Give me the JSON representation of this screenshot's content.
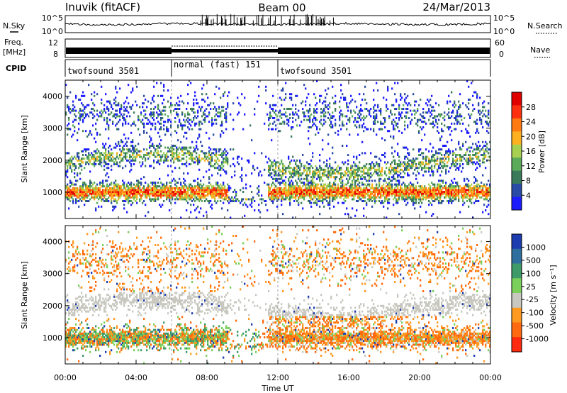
{
  "header": {
    "station": "Inuvik (fitACF)",
    "beam": "Beam 00",
    "date": "24/Mar/2013"
  },
  "noise_panel": {
    "left_label": "N.Sky",
    "right_label": "N.Search",
    "left_ticks": [
      "10^5",
      "10^0"
    ],
    "right_ticks": [
      "10^5",
      "10^0"
    ]
  },
  "freq_panel": {
    "left_label_1": "Freq.",
    "left_label_2": "[MHz]",
    "right_label": "Nave",
    "left_ticks": [
      "12",
      "8"
    ],
    "right_ticks": [
      "60",
      "0"
    ]
  },
  "cpid_panel": {
    "label": "CPID",
    "segments": [
      {
        "name": "twofsound 3501",
        "start_hour": 0,
        "end_hour": 6
      },
      {
        "name": "normal (fast) 151",
        "start_hour": 6,
        "end_hour": 12
      },
      {
        "name": "twofsound 3501",
        "start_hour": 12,
        "end_hour": 24
      }
    ]
  },
  "colors": {
    "power_scale": [
      "#1c1cff",
      "#2a4aa8",
      "#3a7a5a",
      "#5aaa5a",
      "#a8d050",
      "#ffb020",
      "#ff7a10",
      "#ff3010",
      "#e00000"
    ],
    "velocity_scale": [
      "#1c3cb0",
      "#2f6fa0",
      "#3f9a6a",
      "#7ad05a",
      "#c8c8c0",
      "#ff9a20",
      "#ff6a10",
      "#ff2a10"
    ]
  },
  "chart_data": [
    {
      "type": "heatmap",
      "panel": "power",
      "xlabel": "Time UT",
      "ylabel": "Slant Range [km]",
      "xlim": [
        0,
        24
      ],
      "ylim": [
        180,
        4500
      ],
      "x_ticks": [
        "00:00",
        "04:00",
        "08:00",
        "12:00",
        "16:00",
        "20:00",
        "00:00"
      ],
      "y_ticks": [
        "1000",
        "2000",
        "3000",
        "4000"
      ],
      "y_tick_values": [
        1000,
        2000,
        3000,
        4000
      ],
      "colorbar": {
        "label": "Power [dB]",
        "ticks": [
          "28",
          "24",
          "20",
          "16",
          "12",
          "8",
          "4"
        ],
        "range": [
          0,
          32
        ]
      }
    },
    {
      "type": "heatmap",
      "panel": "velocity",
      "xlabel": "Time UT",
      "ylabel": "Slant Range [km]",
      "xlim": [
        0,
        24
      ],
      "ylim": [
        180,
        4500
      ],
      "x_ticks": [
        "00:00",
        "04:00",
        "08:00",
        "12:00",
        "16:00",
        "20:00",
        "00:00"
      ],
      "y_ticks": [
        "1000",
        "2000",
        "3000",
        "4000"
      ],
      "y_tick_values": [
        1000,
        2000,
        3000,
        4000
      ],
      "colorbar": {
        "label": "Velocity [m s⁻¹]",
        "ticks": [
          "1000",
          "500",
          "100",
          "25",
          "-25",
          "-100",
          "-500",
          "-1000"
        ]
      }
    }
  ]
}
